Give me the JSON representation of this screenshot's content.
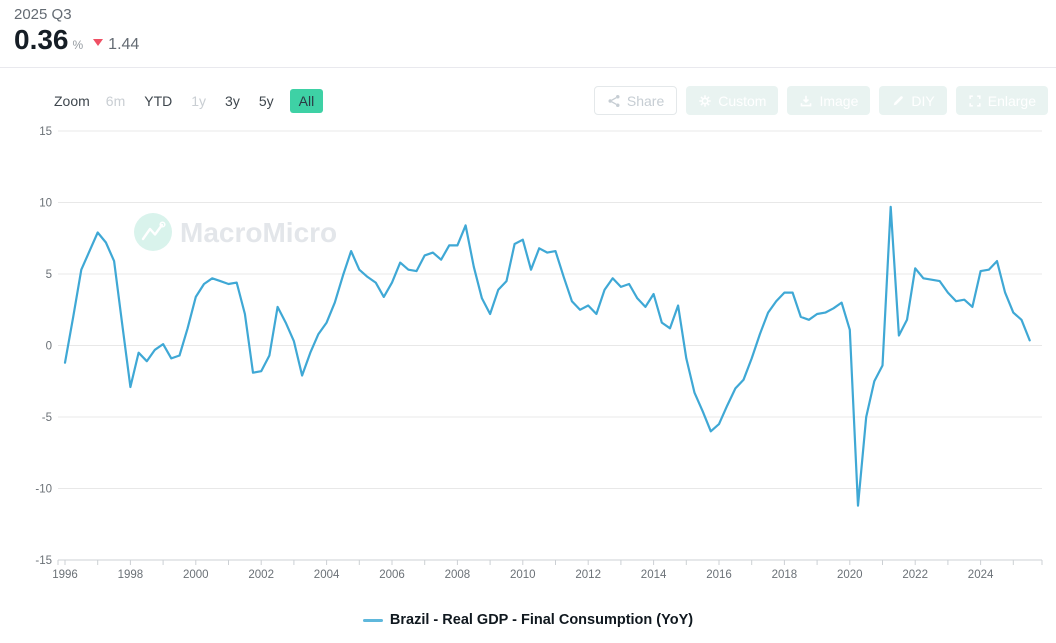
{
  "header": {
    "period": "2025 Q3",
    "value": "0.36",
    "unit": "%",
    "change": "1.44",
    "change_direction": "down"
  },
  "toolbar": {
    "zoom_label": "Zoom",
    "ranges": [
      {
        "label": "6m",
        "state": "disabled"
      },
      {
        "label": "YTD",
        "state": "normal"
      },
      {
        "label": "1y",
        "state": "disabled"
      },
      {
        "label": "3y",
        "state": "normal"
      },
      {
        "label": "5y",
        "state": "normal"
      },
      {
        "label": "All",
        "state": "selected"
      }
    ],
    "actions": [
      {
        "label": "Share",
        "icon": "share-icon",
        "style": "outline"
      },
      {
        "label": "Custom",
        "icon": "gear-icon",
        "style": "pale"
      },
      {
        "label": "Image",
        "icon": "download-icon",
        "style": "pale"
      },
      {
        "label": "DIY",
        "icon": "pencil-icon",
        "style": "pale"
      },
      {
        "label": "Enlarge",
        "icon": "enlarge-icon",
        "style": "pale"
      }
    ]
  },
  "watermark": {
    "text": "MacroMicro"
  },
  "legend": {
    "label": "Brazil - Real GDP - Final Consumption (YoY)",
    "swatch_color": "#5fb8dc"
  },
  "colors": {
    "line": "#3fa8d5",
    "accent_green": "#3ed1a5",
    "down_red": "#ef5064",
    "grid": "#e8e8e8",
    "axis": "#ccd0d4",
    "tick_text": "#6b7177",
    "pale_button_bg": "#e9f3f1"
  },
  "chart_data": {
    "type": "line",
    "title": "",
    "unit": "%",
    "grid": "horizontal",
    "legend_position": "bottom",
    "ylim": [
      -15,
      15
    ],
    "yticks": [
      15,
      10,
      5,
      0,
      -5,
      -10,
      -15
    ],
    "xtick_labels": [
      "1996",
      "1998",
      "2000",
      "2002",
      "2004",
      "2006",
      "2008",
      "2010",
      "2012",
      "2014",
      "2016",
      "2018",
      "2020",
      "2022",
      "2024"
    ],
    "x_range_years": [
      1996,
      2025.75
    ],
    "series": [
      {
        "name": "Brazil - Real GDP - Final Consumption (YoY)",
        "color": "#3fa8d5",
        "frequency": "quarterly",
        "start": "1996Q1",
        "end": "2025Q3",
        "values": [
          -1.2,
          2.0,
          5.3,
          6.6,
          7.9,
          7.2,
          5.9,
          1.5,
          -2.9,
          -0.5,
          -1.1,
          -0.3,
          0.1,
          -0.9,
          -0.7,
          1.2,
          3.4,
          4.3,
          4.7,
          4.5,
          4.3,
          4.4,
          2.2,
          -1.9,
          -1.8,
          -0.7,
          2.7,
          1.6,
          0.3,
          -2.1,
          -0.5,
          0.8,
          1.6,
          3.0,
          4.9,
          6.6,
          5.3,
          4.8,
          4.4,
          3.4,
          4.4,
          5.8,
          5.3,
          5.2,
          6.3,
          6.5,
          6.0,
          7.0,
          7.0,
          8.4,
          5.5,
          3.3,
          2.2,
          3.9,
          4.5,
          7.1,
          7.4,
          5.3,
          6.8,
          6.5,
          6.6,
          4.8,
          3.1,
          2.5,
          2.8,
          2.2,
          3.9,
          4.7,
          4.1,
          4.3,
          3.3,
          2.7,
          3.6,
          1.6,
          1.2,
          2.8,
          -0.9,
          -3.3,
          -4.6,
          -6.0,
          -5.5,
          -4.2,
          -3.0,
          -2.4,
          -0.9,
          0.8,
          2.3,
          3.1,
          3.7,
          3.7,
          2.0,
          1.8,
          2.2,
          2.3,
          2.6,
          3.0,
          1.1,
          -11.2,
          -5.0,
          -2.5,
          -1.4,
          9.7,
          0.7,
          1.8,
          5.4,
          4.7,
          4.6,
          4.5,
          3.7,
          3.1,
          3.2,
          2.7,
          5.2,
          5.3,
          5.9,
          3.7,
          2.3,
          1.8,
          0.36
        ]
      }
    ]
  }
}
